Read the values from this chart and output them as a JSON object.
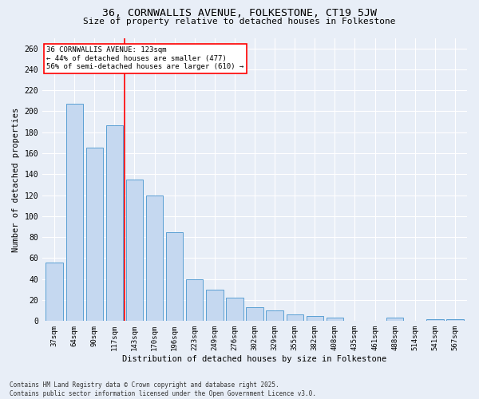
{
  "title_line1": "36, CORNWALLIS AVENUE, FOLKESTONE, CT19 5JW",
  "title_line2": "Size of property relative to detached houses in Folkestone",
  "xlabel": "Distribution of detached houses by size in Folkestone",
  "ylabel": "Number of detached properties",
  "categories": [
    "37sqm",
    "64sqm",
    "90sqm",
    "117sqm",
    "143sqm",
    "170sqm",
    "196sqm",
    "223sqm",
    "249sqm",
    "276sqm",
    "302sqm",
    "329sqm",
    "355sqm",
    "382sqm",
    "408sqm",
    "435sqm",
    "461sqm",
    "488sqm",
    "514sqm",
    "541sqm",
    "567sqm"
  ],
  "values": [
    56,
    207,
    165,
    187,
    135,
    120,
    85,
    40,
    30,
    22,
    13,
    10,
    6,
    5,
    3,
    0,
    0,
    3,
    0,
    2,
    2
  ],
  "bar_color": "#c5d8f0",
  "bar_edge_color": "#5a9fd4",
  "vline_color": "red",
  "annotation_text": "36 CORNWALLIS AVENUE: 123sqm\n← 44% of detached houses are smaller (477)\n56% of semi-detached houses are larger (610) →",
  "annotation_box_color": "white",
  "annotation_box_edge": "red",
  "ylim": [
    0,
    270
  ],
  "yticks": [
    0,
    20,
    40,
    60,
    80,
    100,
    120,
    140,
    160,
    180,
    200,
    220,
    240,
    260
  ],
  "bg_color": "#e8eef7",
  "footer_line1": "Contains HM Land Registry data © Crown copyright and database right 2025.",
  "footer_line2": "Contains public sector information licensed under the Open Government Licence v3.0.",
  "title_fontsize": 9.5,
  "subtitle_fontsize": 8,
  "bar_width": 0.85
}
